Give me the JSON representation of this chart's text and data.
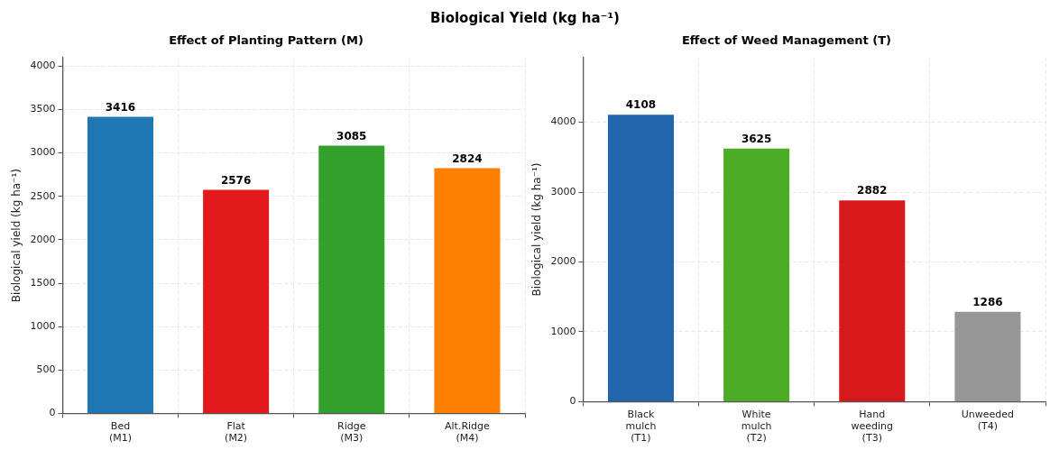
{
  "chart_data": [
    {
      "type": "bar",
      "title": "Biological Yield (kg ha⁻¹)",
      "subtitle": "Effect of Planting Pattern (M)",
      "ylabel": "Biological yield (kg ha⁻¹)",
      "categories": [
        "Bed\n(M1)",
        "Flat\n(M2)",
        "Ridge\n(M3)",
        "Alt.Ridge\n(M4)"
      ],
      "values": [
        3416,
        2576,
        3085,
        2824
      ],
      "colors": [
        "#1f77b4",
        "#e31a1c",
        "#33a02c",
        "#ff7f00"
      ],
      "ylim": [
        0,
        4100
      ],
      "yticks": [
        0,
        500,
        1000,
        1500,
        2000,
        2500,
        3000,
        3500,
        4000
      ],
      "grid": true,
      "data_labels": true
    },
    {
      "type": "bar",
      "subtitle": "Effect of Weed Management (T)",
      "ylabel": "Biological yield (kg ha⁻¹)",
      "categories": [
        "Black\nmulch\n(T1)",
        "White\nmulch\n(T2)",
        "Hand\nweeding\n(T3)",
        "Unweeded\n(T4)"
      ],
      "values": [
        4108,
        3625,
        2882,
        1286
      ],
      "colors": [
        "#2166ac",
        "#4dac26",
        "#d7191c",
        "#969696"
      ],
      "ylim": [
        0,
        4930
      ],
      "yticks": [
        0,
        1000,
        2000,
        3000,
        4000
      ],
      "grid": true,
      "data_labels": true
    }
  ]
}
